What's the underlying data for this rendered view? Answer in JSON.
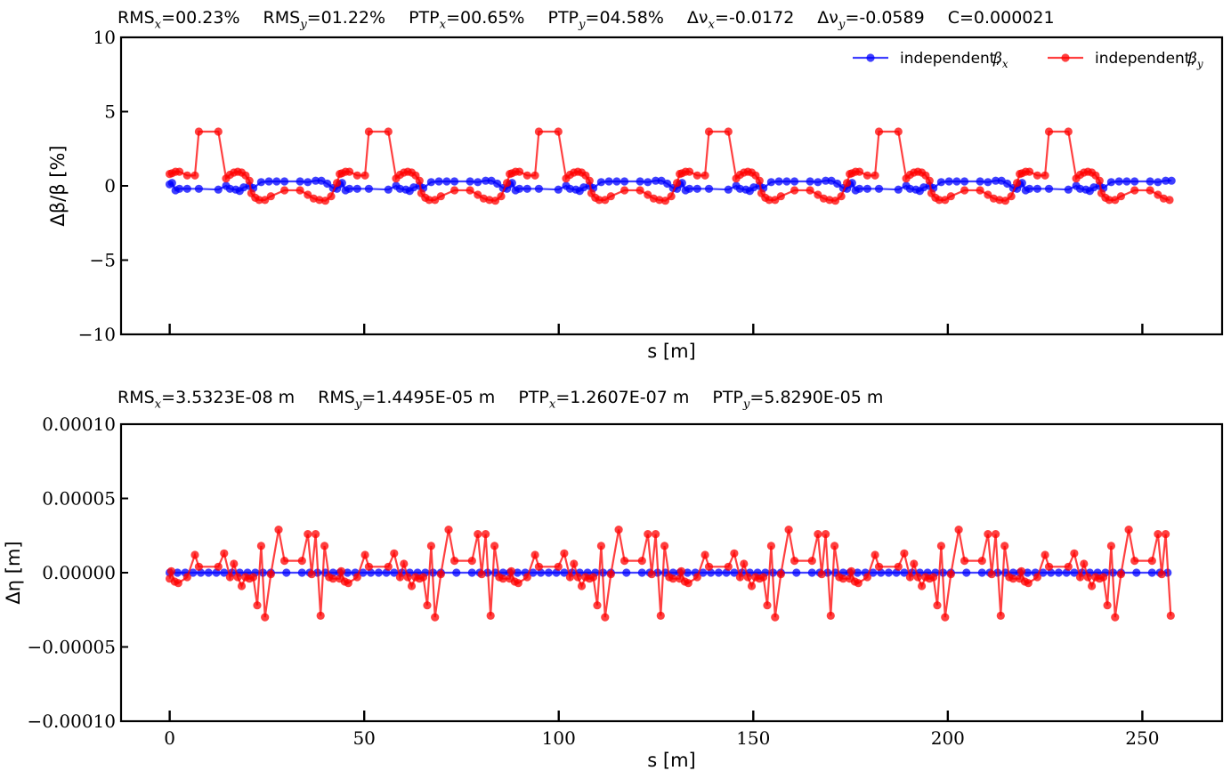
{
  "colors": {
    "beta_x": "#0000ff",
    "beta_y": "#ff0000",
    "frame": "#000000"
  },
  "chart_data": [
    {
      "type": "line",
      "title": "RMSx=00.23%   RMSy=01.22%   PTPx=00.65%   PTPy=04.58%   Δνx=-0.0172   Δνy=-0.0589   C=0.000021",
      "stats": [
        {
          "label": "RMS",
          "sub": "x",
          "value": "=00.23%"
        },
        {
          "label": "RMS",
          "sub": "y",
          "value": "=01.22%"
        },
        {
          "label": "PTP",
          "sub": "x",
          "value": "=00.65%"
        },
        {
          "label": "PTP",
          "sub": "y",
          "value": "=04.58%"
        },
        {
          "label": "Δν",
          "sub": "x",
          "value": "=-0.0172"
        },
        {
          "label": "Δν",
          "sub": "y",
          "value": "=-0.0589"
        },
        {
          "label": "C",
          "sub": "",
          "value": "=0.000021"
        }
      ],
      "xlabel": "s [m]",
      "ylabel": "Δβ/β [%]",
      "xlim": [
        -12.5,
        270.5
      ],
      "ylim": [
        -10,
        10
      ],
      "yticks": [
        10,
        5,
        0,
        -5,
        -10
      ],
      "ytick_labels": [
        "10",
        "5",
        "0",
        "−5",
        "−10"
      ],
      "xticks": [
        0,
        50,
        100,
        150,
        200,
        250
      ],
      "show_x_tick_labels": false,
      "legend": {
        "position": "top-right",
        "entries": [
          {
            "label": "independent, ",
            "sym": "β",
            "sub": "x"
          },
          {
            "label": "independent, ",
            "sym": "β",
            "sub": "y"
          }
        ]
      },
      "cell": {
        "period": 43.7,
        "beta_x": [
          [
            0,
            0.1
          ],
          [
            0.6,
            0.2
          ],
          [
            1.5,
            -0.3
          ],
          [
            2.5,
            -0.2
          ],
          [
            4.5,
            -0.2
          ],
          [
            7.5,
            -0.2
          ],
          [
            12.5,
            -0.25
          ],
          [
            14.5,
            0.0
          ],
          [
            15.5,
            -0.2
          ],
          [
            17,
            -0.25
          ],
          [
            18,
            -0.35
          ],
          [
            19,
            -0.1
          ],
          [
            20.5,
            0.0
          ],
          [
            21.5,
            -0.15
          ],
          [
            23.5,
            0.25
          ],
          [
            25.5,
            0.3
          ],
          [
            27.5,
            0.3
          ],
          [
            29.5,
            0.3
          ],
          [
            33.5,
            0.3
          ],
          [
            35.5,
            0.25
          ],
          [
            37.5,
            0.35
          ],
          [
            39,
            0.35
          ],
          [
            40.5,
            0.15
          ],
          [
            42,
            -0.15
          ],
          [
            43,
            -0.2
          ]
        ],
        "beta_y": [
          [
            0,
            0.8
          ],
          [
            0.6,
            0.85
          ],
          [
            1.5,
            0.95
          ],
          [
            2.5,
            0.95
          ],
          [
            4.5,
            0.7
          ],
          [
            6.5,
            0.7
          ],
          [
            7.5,
            3.65
          ],
          [
            12.5,
            3.65
          ],
          [
            14.5,
            0.5
          ],
          [
            15.5,
            0.75
          ],
          [
            16.5,
            0.9
          ],
          [
            17.5,
            0.95
          ],
          [
            18.5,
            0.9
          ],
          [
            19.5,
            0.7
          ],
          [
            20.5,
            0.35
          ],
          [
            21,
            -0.5
          ],
          [
            22,
            -0.8
          ],
          [
            23,
            -0.95
          ],
          [
            24.5,
            -0.95
          ],
          [
            26,
            -0.7
          ],
          [
            29.5,
            -0.3
          ],
          [
            33.5,
            -0.3
          ],
          [
            35.5,
            -0.6
          ],
          [
            37,
            -0.85
          ],
          [
            38.5,
            -0.95
          ],
          [
            40,
            -1.0
          ],
          [
            41.5,
            -0.7
          ],
          [
            43,
            0.2
          ]
        ]
      },
      "series": [
        {
          "name": "independent, βx",
          "color": "#0000ff",
          "cell": "beta_x",
          "x_max": 257.5
        },
        {
          "name": "independent, βy",
          "color": "#ff0000",
          "cell": "beta_y",
          "x_max": 257.5
        }
      ]
    },
    {
      "type": "line",
      "title": "RMSx=3.5323E-08 m   RMSy=1.4495E-05 m   PTPx=1.2607E-07 m   PTPy=5.8290E-05 m",
      "stats": [
        {
          "label": "RMS",
          "sub": "x",
          "value": "=3.5323E-08 m"
        },
        {
          "label": "RMS",
          "sub": "y",
          "value": "=1.4495E-05 m"
        },
        {
          "label": "PTP",
          "sub": "x",
          "value": "=1.2607E-07 m"
        },
        {
          "label": "PTP",
          "sub": "y",
          "value": "=5.8290E-05 m"
        }
      ],
      "xlabel": "s [m]",
      "ylabel": "Δη [m]",
      "xlim": [
        -12.5,
        270.5
      ],
      "ylim": [
        -0.0001,
        0.0001
      ],
      "yticks": [
        0.0001,
        5e-05,
        0,
        -5e-05,
        -0.0001
      ],
      "ytick_labels": [
        "0.00010",
        "0.00005",
        "0.00000",
        "−0.00005",
        "−0.00010"
      ],
      "xticks": [
        0,
        50,
        100,
        150,
        200,
        250
      ],
      "xtick_labels": [
        "0",
        "50",
        "100",
        "150",
        "200",
        "250"
      ],
      "show_x_tick_labels": true,
      "cell": {
        "period": 43.7,
        "beta_x": [
          [
            0,
            0.0
          ],
          [
            2,
            0.0
          ],
          [
            4,
            0.0
          ],
          [
            6,
            0.0
          ],
          [
            8,
            0.0
          ],
          [
            10,
            0.0
          ],
          [
            12,
            0.0
          ],
          [
            14,
            0.0
          ],
          [
            16,
            0.0
          ],
          [
            18,
            0.0
          ],
          [
            20,
            0.0
          ],
          [
            22,
            0.0
          ],
          [
            24,
            0.0
          ],
          [
            26,
            0.0
          ],
          [
            30,
            0.0
          ],
          [
            34,
            0.0
          ],
          [
            36,
            0.0
          ],
          [
            38,
            0.0
          ],
          [
            40,
            0.0
          ],
          [
            42,
            0.0
          ]
        ],
        "beta_y": [
          [
            0,
            -4e-06
          ],
          [
            0.4,
            1e-06
          ],
          [
            1.3,
            -6e-06
          ],
          [
            2.2,
            -7e-06
          ],
          [
            4.5,
            -3e-06
          ],
          [
            6.5,
            1.2e-05
          ],
          [
            7.5,
            4e-06
          ],
          [
            12.5,
            4e-06
          ],
          [
            14,
            1.3e-05
          ],
          [
            15.5,
            -3e-06
          ],
          [
            16.5,
            6e-06
          ],
          [
            17.5,
            -3e-06
          ],
          [
            18.5,
            -9e-06
          ],
          [
            19.5,
            -3e-06
          ],
          [
            20.5,
            -4e-06
          ],
          [
            21.5,
            -3e-06
          ],
          [
            22.5,
            -2.2e-05
          ],
          [
            23.5,
            1.8e-05
          ],
          [
            24.5,
            -3e-05
          ],
          [
            26,
            -1e-06
          ],
          [
            28,
            2.9e-05
          ],
          [
            29.5,
            8e-06
          ],
          [
            34,
            8e-06
          ],
          [
            35.5,
            2.6e-05
          ],
          [
            36.5,
            -1e-06
          ],
          [
            37.5,
            2.6e-05
          ],
          [
            38.8,
            -2.9e-05
          ],
          [
            39.8,
            1.8e-05
          ],
          [
            41,
            -3e-06
          ],
          [
            42,
            -4e-06
          ]
        ]
      },
      "series": [
        {
          "name": "independent, βx",
          "color": "#0000ff",
          "cell": "beta_x",
          "x_max": 257.5
        },
        {
          "name": "independent, βy",
          "color": "#ff0000",
          "cell": "beta_y",
          "x_max": 257.5
        }
      ]
    }
  ]
}
